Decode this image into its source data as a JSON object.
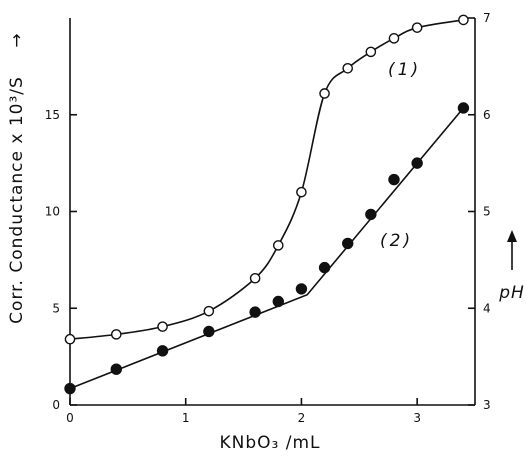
{
  "chart_data": {
    "type": "line",
    "x_axis": {
      "label": "KNbO₃ /mL",
      "ticks": [
        0,
        1,
        2,
        3
      ],
      "range": [
        0,
        3.5
      ]
    },
    "y_axis_left": {
      "label": "Corr. Conductance x 10³/S",
      "arrow": "→",
      "ticks": [
        0,
        5,
        10,
        15
      ],
      "range": [
        0,
        20
      ]
    },
    "y_axis_right": {
      "label": "pH",
      "ticks": [
        3,
        4,
        5,
        6,
        7
      ],
      "range": [
        3,
        7
      ]
    },
    "series": [
      {
        "name": "(1)",
        "marker": "open-circle",
        "axis": "right",
        "x": [
          0,
          0.4,
          0.8,
          1.2,
          1.6,
          1.8,
          2.0,
          2.2,
          2.4,
          2.6,
          2.8,
          3.0,
          3.4
        ],
        "y": [
          3.68,
          3.73,
          3.81,
          3.97,
          4.31,
          4.65,
          5.2,
          6.22,
          6.48,
          6.65,
          6.79,
          6.9,
          6.98
        ]
      },
      {
        "name": "(2)",
        "marker": "filled-circle",
        "axis": "right",
        "x": [
          0,
          0.4,
          0.8,
          1.2,
          1.6,
          1.8,
          2.0,
          2.2,
          2.4,
          2.6,
          2.8,
          3.0,
          3.4
        ],
        "y": [
          3.17,
          3.37,
          3.56,
          3.76,
          3.96,
          4.07,
          4.2,
          4.42,
          4.67,
          4.97,
          5.33,
          5.5,
          6.07
        ]
      }
    ],
    "grid": false,
    "legend": "inline labels"
  }
}
